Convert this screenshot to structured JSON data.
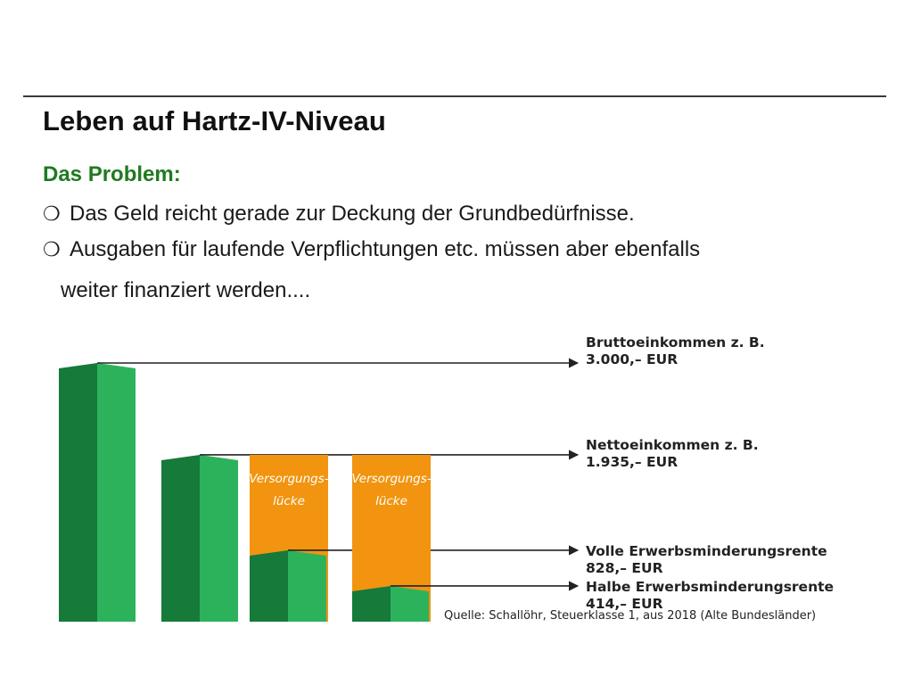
{
  "slide": {
    "title": "Leben auf Hartz-IV-Niveau",
    "subtitle": "Das Problem:",
    "bullets": [
      {
        "marker": "❍",
        "lines": [
          "Das Geld reicht gerade zur Deckung der Grundbedürfnisse."
        ]
      },
      {
        "marker": "❍",
        "lines": [
          "Ausgaben für laufende Verpflichtungen etc. müssen aber ebenfalls",
          "weiter finanziert werden...."
        ]
      }
    ]
  },
  "chart_data": {
    "type": "bar",
    "categories": [
      "Bruttoeinkommen",
      "Nettoeinkommen",
      "Volle Erwerbsminderungsrente",
      "Halbe Erwerbsminderungsrente"
    ],
    "values": [
      3000,
      1935,
      828,
      414
    ],
    "gap_to": [
      null,
      null,
      1935,
      1935
    ],
    "gap_label_lines": [
      "Versorgungs-",
      "lücke"
    ],
    "annotations": [
      {
        "line1": "Bruttoeinkommen z. B.",
        "line2": "3.000,– EUR"
      },
      {
        "line1": "Nettoeinkommen z. B.",
        "line2": "1.935,– EUR"
      },
      {
        "line1": "Volle Erwerbsminderungsrente",
        "line2": "828,– EUR"
      },
      {
        "line1": "Halbe Erwerbsminderungsrente",
        "line2": "414,– EUR"
      }
    ],
    "source": "Quelle: Schallöhr, Steuerklasse 1, aus 2018 (Alte Bundesländer)",
    "colors": {
      "bar_light": "#2db25c",
      "bar_dark": "#157a3a",
      "gap": "#f2940f",
      "arrow": "#222222"
    },
    "ylim": [
      0,
      3000
    ]
  }
}
